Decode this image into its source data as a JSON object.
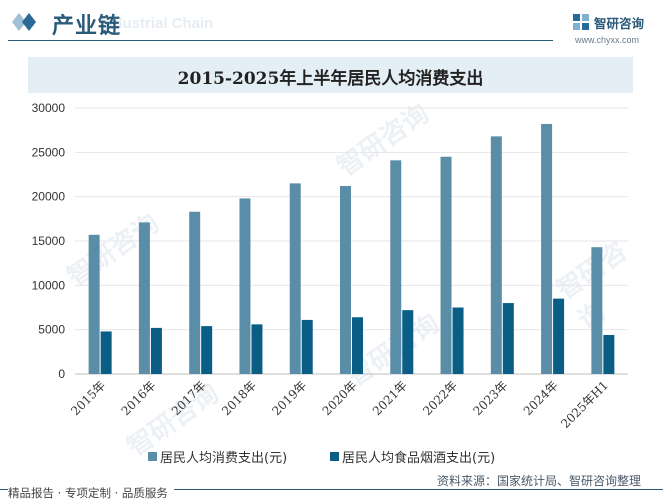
{
  "header": {
    "title": "产业链",
    "watermark": "Industrial Chain",
    "brand_name": "智研咨询",
    "brand_url": "www.chyxx.com"
  },
  "chart_data": {
    "type": "bar",
    "title": "2015-2025年上半年居民人均消费支出",
    "categories": [
      "2015年",
      "2016年",
      "2017年",
      "2018年",
      "2019年",
      "2020年",
      "2021年",
      "2022年",
      "2023年",
      "2024年",
      "2025年H1"
    ],
    "series": [
      {
        "name": "居民人均消费支出(元)",
        "color": "#5a8ea8",
        "values": [
          15700,
          17100,
          18300,
          19800,
          21500,
          21200,
          24100,
          24500,
          26800,
          28200,
          14300
        ]
      },
      {
        "name": "居民人均食品烟酒支出(元)",
        "color": "#0a5e86",
        "values": [
          4800,
          5200,
          5400,
          5600,
          6100,
          6400,
          7200,
          7500,
          8000,
          8500,
          4400
        ]
      }
    ],
    "ylim": [
      0,
      30000
    ],
    "yticks": [
      0,
      5000,
      10000,
      15000,
      20000,
      25000,
      30000
    ],
    "grid": true,
    "legend_position": "bottom"
  },
  "footer": {
    "source": "资料来源：国家统计局、智研咨询整理",
    "tagline": "精品报告 · 专项定制 · 品质服务"
  },
  "watermark_text": "智研咨询"
}
